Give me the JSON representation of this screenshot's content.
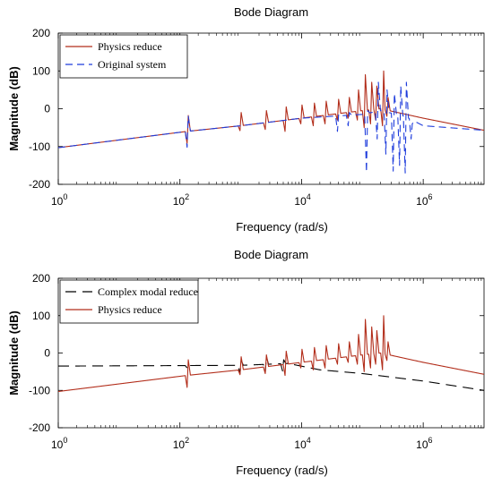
{
  "chart_data": [
    {
      "type": "line",
      "title": "Bode Diagram",
      "xlabel": "Frequency  (rad/s)",
      "ylabel": "Magnitude (dB)",
      "xscale": "log",
      "xlim": [
        1,
        10000000
      ],
      "ylim": [
        -200,
        200
      ],
      "xticks": [
        {
          "base": "10",
          "exp": "0",
          "value": 1
        },
        {
          "base": "10",
          "exp": "2",
          "value": 100
        },
        {
          "base": "10",
          "exp": "4",
          "value": 10000
        },
        {
          "base": "10",
          "exp": "6",
          "value": 1000000
        }
      ],
      "yticks": [
        -200,
        -100,
        0,
        100,
        200
      ],
      "grid": false,
      "legend": "top-left",
      "series": [
        {
          "name": "Physics reduce",
          "color": "#b22d1a",
          "dash": "solid",
          "baseline": [
            [
              1,
              -103
            ],
            [
              130,
              -60
            ],
            [
              1000,
              -45
            ],
            [
              10000,
              -25
            ],
            [
              100000,
              -5
            ],
            [
              200000,
              0
            ],
            [
              1000000,
              -25
            ],
            [
              10000000,
              -57
            ]
          ],
          "resonances": [
            {
              "f": 135,
              "peak": -18,
              "notch": -92
            },
            {
              "f": 1000,
              "peak": -10,
              "notch": -58
            },
            {
              "f": 2600,
              "peak": -5,
              "notch": -55
            },
            {
              "f": 5500,
              "peak": 5,
              "notch": -60
            },
            {
              "f": 10000,
              "peak": 10,
              "notch": -40
            },
            {
              "f": 16000,
              "peak": 15,
              "notch": -45
            },
            {
              "f": 25000,
              "peak": 20,
              "notch": -40
            },
            {
              "f": 40000,
              "peak": 25,
              "notch": -30
            },
            {
              "f": 60000,
              "peak": 30,
              "notch": -25
            },
            {
              "f": 85000,
              "peak": 50,
              "notch": -30
            },
            {
              "f": 110000,
              "peak": 90,
              "notch": -50
            },
            {
              "f": 140000,
              "peak": 70,
              "notch": -40
            },
            {
              "f": 170000,
              "peak": 60,
              "notch": -30
            },
            {
              "f": 220000,
              "peak": 100,
              "notch": -45
            },
            {
              "f": 260000,
              "peak": 30,
              "notch": -20
            }
          ]
        },
        {
          "name": "Original system",
          "color": "#1e3cdc",
          "dash": "8,5",
          "baseline": [
            [
              1,
              -103
            ],
            [
              130,
              -60
            ],
            [
              1000,
              -45
            ],
            [
              10000,
              -25
            ],
            [
              50000,
              -18
            ],
            [
              100000,
              -15
            ],
            [
              200000,
              -5
            ],
            [
              500000,
              -20
            ],
            [
              1000000,
              -45
            ],
            [
              10000000,
              -57
            ]
          ],
          "resonances": [
            {
              "f": 135,
              "peak": -20,
              "notch": -102
            },
            {
              "f": 40000,
              "peak": -15,
              "notch": -60
            },
            {
              "f": 60000,
              "peak": -10,
              "notch": -45
            },
            {
              "f": 120000,
              "peak": -5,
              "notch": -168
            },
            {
              "f": 180000,
              "peak": 70,
              "notch": -80
            },
            {
              "f": 250000,
              "peak": 50,
              "notch": -120
            },
            {
              "f": 330000,
              "peak": 40,
              "notch": -165
            },
            {
              "f": 420000,
              "peak": 60,
              "notch": -150
            },
            {
              "f": 520000,
              "peak": 70,
              "notch": -170
            },
            {
              "f": 650000,
              "peak": -40,
              "notch": -80
            }
          ]
        }
      ]
    },
    {
      "type": "line",
      "title": "Bode Diagram",
      "xlabel": "Frequency  (rad/s)",
      "ylabel": "Magnitude (dB)",
      "xscale": "log",
      "xlim": [
        1,
        10000000
      ],
      "ylim": [
        -200,
        200
      ],
      "xticks": [
        {
          "base": "10",
          "exp": "0",
          "value": 1
        },
        {
          "base": "10",
          "exp": "2",
          "value": 100
        },
        {
          "base": "10",
          "exp": "4",
          "value": 10000
        },
        {
          "base": "10",
          "exp": "6",
          "value": 1000000
        }
      ],
      "yticks": [
        -200,
        -100,
        0,
        100,
        200
      ],
      "grid": false,
      "legend": "top-left",
      "series": [
        {
          "name": "Complex modal reduce",
          "color": "#000000",
          "dash": "12,7",
          "baseline": [
            [
              1,
              -35
            ],
            [
              1000,
              -33
            ],
            [
              6000,
              -28
            ],
            [
              20000,
              -45
            ],
            [
              100000,
              -55
            ],
            [
              1000000,
              -75
            ],
            [
              10000000,
              -100
            ]
          ],
          "resonances": [
            {
              "f": 135,
              "peak": -30,
              "notch": -40
            },
            {
              "f": 1000,
              "peak": -20,
              "notch": -55
            },
            {
              "f": 2600,
              "peak": -10,
              "notch": -52
            },
            {
              "f": 5000,
              "peak": -18,
              "notch": -48
            }
          ]
        },
        {
          "name": "Physics reduce",
          "color": "#b22d1a",
          "dash": "solid",
          "baseline": [
            [
              1,
              -103
            ],
            [
              130,
              -60
            ],
            [
              1000,
              -45
            ],
            [
              10000,
              -25
            ],
            [
              100000,
              -5
            ],
            [
              200000,
              0
            ],
            [
              1000000,
              -25
            ],
            [
              10000000,
              -57
            ]
          ],
          "resonances": [
            {
              "f": 135,
              "peak": -18,
              "notch": -92
            },
            {
              "f": 1000,
              "peak": -10,
              "notch": -58
            },
            {
              "f": 2600,
              "peak": -5,
              "notch": -55
            },
            {
              "f": 5500,
              "peak": 5,
              "notch": -60
            },
            {
              "f": 10000,
              "peak": 10,
              "notch": -40
            },
            {
              "f": 16000,
              "peak": 15,
              "notch": -45
            },
            {
              "f": 25000,
              "peak": 20,
              "notch": -40
            },
            {
              "f": 40000,
              "peak": 25,
              "notch": -30
            },
            {
              "f": 60000,
              "peak": 30,
              "notch": -25
            },
            {
              "f": 85000,
              "peak": 50,
              "notch": -30
            },
            {
              "f": 110000,
              "peak": 90,
              "notch": -50
            },
            {
              "f": 140000,
              "peak": 70,
              "notch": -40
            },
            {
              "f": 170000,
              "peak": 60,
              "notch": -30
            },
            {
              "f": 220000,
              "peak": 100,
              "notch": -45
            },
            {
              "f": 260000,
              "peak": 30,
              "notch": -20
            }
          ]
        }
      ]
    }
  ]
}
